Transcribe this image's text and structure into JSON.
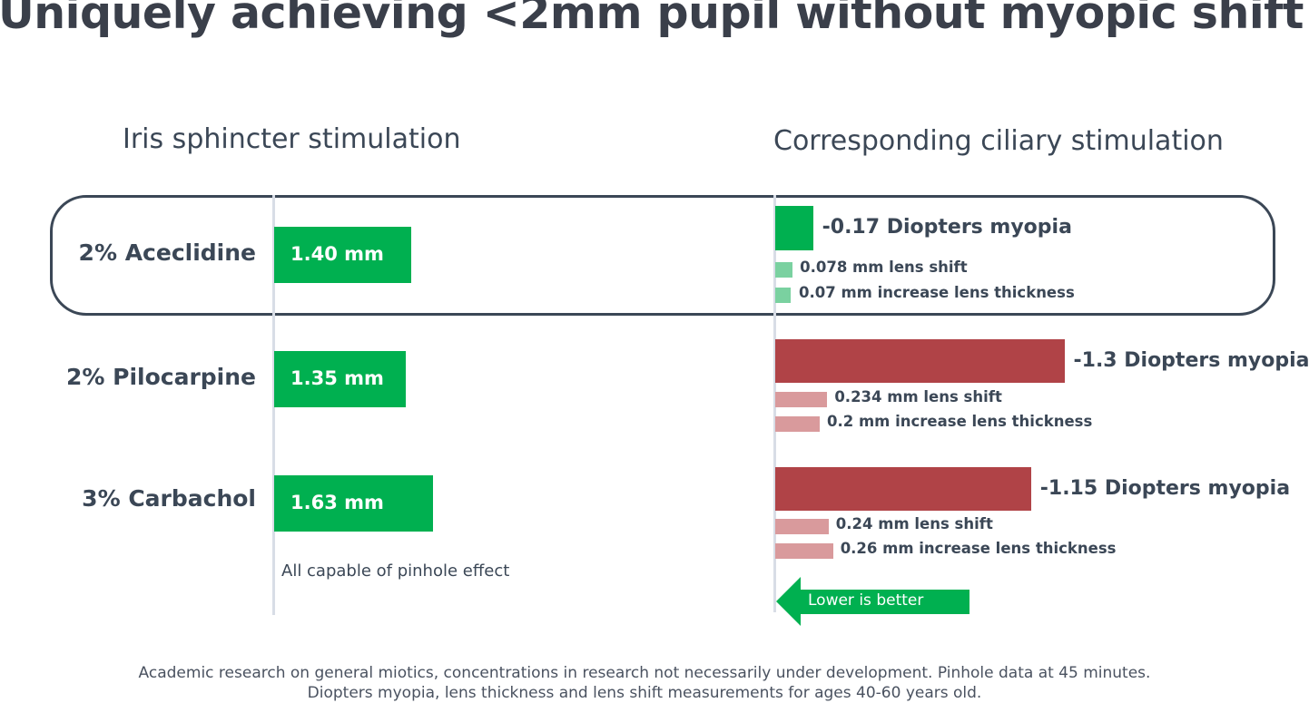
{
  "title": "Uniquely achieving <2mm pupil without myopic shift",
  "left_header": "Iris sphincter stimulation",
  "right_header": "Corresponding ciliary stimulation",
  "colors": {
    "green": "#00b050",
    "green_light": "#7ad1a0",
    "red": "#b04347",
    "red_light": "#d99a9c",
    "text": "#3b4756"
  },
  "chart_data": [
    {
      "type": "bar",
      "title": "Iris sphincter stimulation",
      "categories": [
        "2% Aceclidine",
        "2% Pilocarpine",
        "3% Carbachol"
      ],
      "values": [
        1.4,
        1.35,
        1.63
      ],
      "value_labels": [
        "1.40 mm",
        "1.35 mm",
        "1.63 mm"
      ],
      "unit": "mm",
      "note": "All capable of pinhole effect"
    },
    {
      "type": "bar",
      "title": "Corresponding ciliary stimulation",
      "categories": [
        "2% Aceclidine",
        "2% Pilocarpine",
        "3% Carbachol"
      ],
      "series": [
        {
          "name": "Diopters myopia",
          "values": [
            -0.17,
            -1.3,
            -1.15
          ],
          "labels": [
            "-0.17 Diopters myopia",
            "-1.3 Diopters myopia",
            "-1.15 Diopters myopia"
          ]
        },
        {
          "name": "lens shift",
          "values": [
            0.078,
            0.234,
            0.24
          ],
          "labels": [
            "0.078 mm lens shift",
            "0.234 mm lens shift",
            "0.24 mm lens shift"
          ]
        },
        {
          "name": "increase lens thickness",
          "values": [
            0.07,
            0.2,
            0.26
          ],
          "labels": [
            "0.07 mm increase lens thickness",
            "0.2 mm increase lens thickness",
            "0.26 mm increase lens thickness"
          ]
        }
      ],
      "annotation": "Lower is better"
    }
  ],
  "footnote": "Academic research on general miotics, concentrations in research not necessarily under development. Pinhole data at 45 minutes. Diopters myopia, lens thickness and lens shift measurements for ages 40-60 years old."
}
